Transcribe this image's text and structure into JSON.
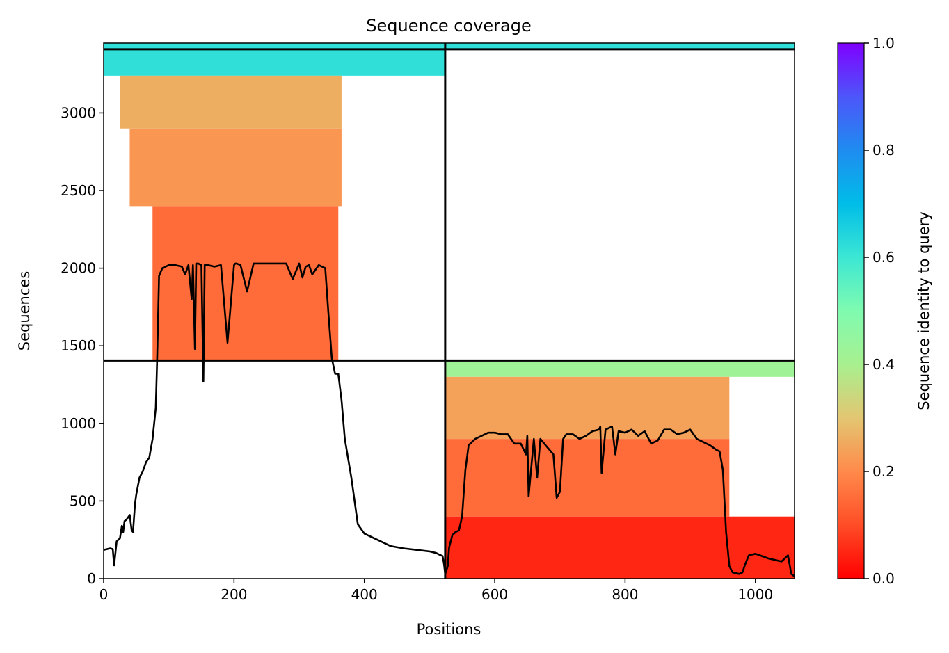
{
  "chart_data": {
    "type": "heatmap",
    "title": "Sequence coverage",
    "xlabel": "Positions",
    "ylabel": "Sequences",
    "xlim": [
      0,
      1060
    ],
    "ylim": [
      0,
      3450
    ],
    "xticks": [
      0,
      200,
      400,
      600,
      800,
      1000
    ],
    "yticks": [
      0,
      500,
      1000,
      1500,
      2000,
      2500,
      3000
    ],
    "grid": false,
    "colormap": "rainbow_r",
    "colorbar": {
      "label": "Sequence identity to query",
      "range": [
        0,
        1
      ],
      "ticks": [
        "0.0",
        "0.2",
        "0.4",
        "0.6",
        "0.8",
        "1.0"
      ]
    },
    "chain_boundary_x": 524,
    "chain_boundary_y": [
      1405,
      3410
    ],
    "coverage_blocks": [
      {
        "x": [
          0,
          524
        ],
        "y": [
          3240,
          3450
        ],
        "identity": 0.62
      },
      {
        "x": [
          25,
          365
        ],
        "y": [
          2900,
          3240
        ],
        "identity": 0.26
      },
      {
        "x": [
          40,
          365
        ],
        "y": [
          2400,
          2900
        ],
        "identity": 0.22
      },
      {
        "x": [
          75,
          360
        ],
        "y": [
          1405,
          2400
        ],
        "identity": 0.15
      },
      {
        "x": [
          524,
          1060
        ],
        "y": [
          3410,
          3450
        ],
        "identity": 0.62
      },
      {
        "x": [
          524,
          1060
        ],
        "y": [
          1300,
          1405
        ],
        "identity": 0.42
      },
      {
        "x": [
          524,
          960
        ],
        "y": [
          900,
          1300
        ],
        "identity": 0.24
      },
      {
        "x": [
          524,
          960
        ],
        "y": [
          400,
          900
        ],
        "identity": 0.15
      },
      {
        "x": [
          524,
          1060
        ],
        "y": [
          0,
          400
        ],
        "identity": 0.05
      }
    ],
    "series": [
      {
        "type": "line",
        "color": "#000000",
        "x": [
          0,
          10,
          14,
          16,
          20,
          25,
          28,
          30,
          32,
          35,
          40,
          43,
          45,
          48,
          50,
          55,
          60,
          65,
          70,
          75,
          80,
          82,
          85,
          90,
          100,
          110,
          120,
          125,
          130,
          135,
          137,
          140,
          142,
          145,
          150,
          153,
          155,
          160,
          170,
          180,
          190,
          200,
          202,
          204,
          210,
          220,
          230,
          237,
          240,
          250,
          260,
          270,
          280,
          290,
          300,
          305,
          310,
          315,
          320,
          330,
          340,
          345,
          350,
          355,
          360,
          365,
          370,
          380,
          390,
          400,
          420,
          440,
          460,
          480,
          500,
          510,
          515,
          520,
          522,
          524,
          528,
          530,
          535,
          540,
          545,
          550,
          555,
          560,
          570,
          580,
          590,
          600,
          610,
          620,
          630,
          640,
          648,
          650,
          652,
          660,
          665,
          670,
          680,
          690,
          695,
          700,
          705,
          710,
          720,
          730,
          740,
          750,
          760,
          762,
          764,
          770,
          780,
          785,
          790,
          800,
          810,
          820,
          830,
          840,
          850,
          860,
          870,
          880,
          890,
          900,
          910,
          920,
          930,
          940,
          945,
          950,
          955,
          960,
          965,
          970,
          975,
          980,
          985,
          990,
          1000,
          1010,
          1020,
          1030,
          1040,
          1050,
          1055,
          1060
        ],
        "y": [
          185,
          195,
          190,
          85,
          240,
          260,
          340,
          300,
          370,
          380,
          410,
          310,
          300,
          480,
          540,
          650,
          690,
          750,
          780,
          900,
          1100,
          1400,
          1950,
          2000,
          2020,
          2020,
          2010,
          1960,
          2020,
          1800,
          2020,
          1480,
          2030,
          2030,
          2020,
          1270,
          2020,
          2020,
          2010,
          2020,
          1520,
          2020,
          2030,
          2030,
          2020,
          1850,
          2030,
          2030,
          2030,
          2030,
          2030,
          2030,
          2030,
          1930,
          2030,
          1940,
          2010,
          2020,
          1960,
          2020,
          2000,
          1700,
          1420,
          1320,
          1320,
          1150,
          900,
          650,
          350,
          290,
          250,
          210,
          195,
          185,
          175,
          165,
          155,
          145,
          100,
          30,
          80,
          200,
          280,
          300,
          310,
          400,
          700,
          860,
          900,
          920,
          940,
          940,
          930,
          930,
          870,
          870,
          800,
          920,
          530,
          900,
          650,
          900,
          850,
          800,
          520,
          560,
          900,
          930,
          930,
          900,
          920,
          950,
          960,
          980,
          680,
          960,
          980,
          800,
          950,
          940,
          960,
          920,
          950,
          870,
          890,
          960,
          960,
          930,
          940,
          960,
          900,
          880,
          860,
          830,
          820,
          700,
          300,
          80,
          40,
          35,
          30,
          40,
          100,
          150,
          160,
          145,
          130,
          120,
          110,
          150,
          30,
          15
        ]
      }
    ]
  }
}
